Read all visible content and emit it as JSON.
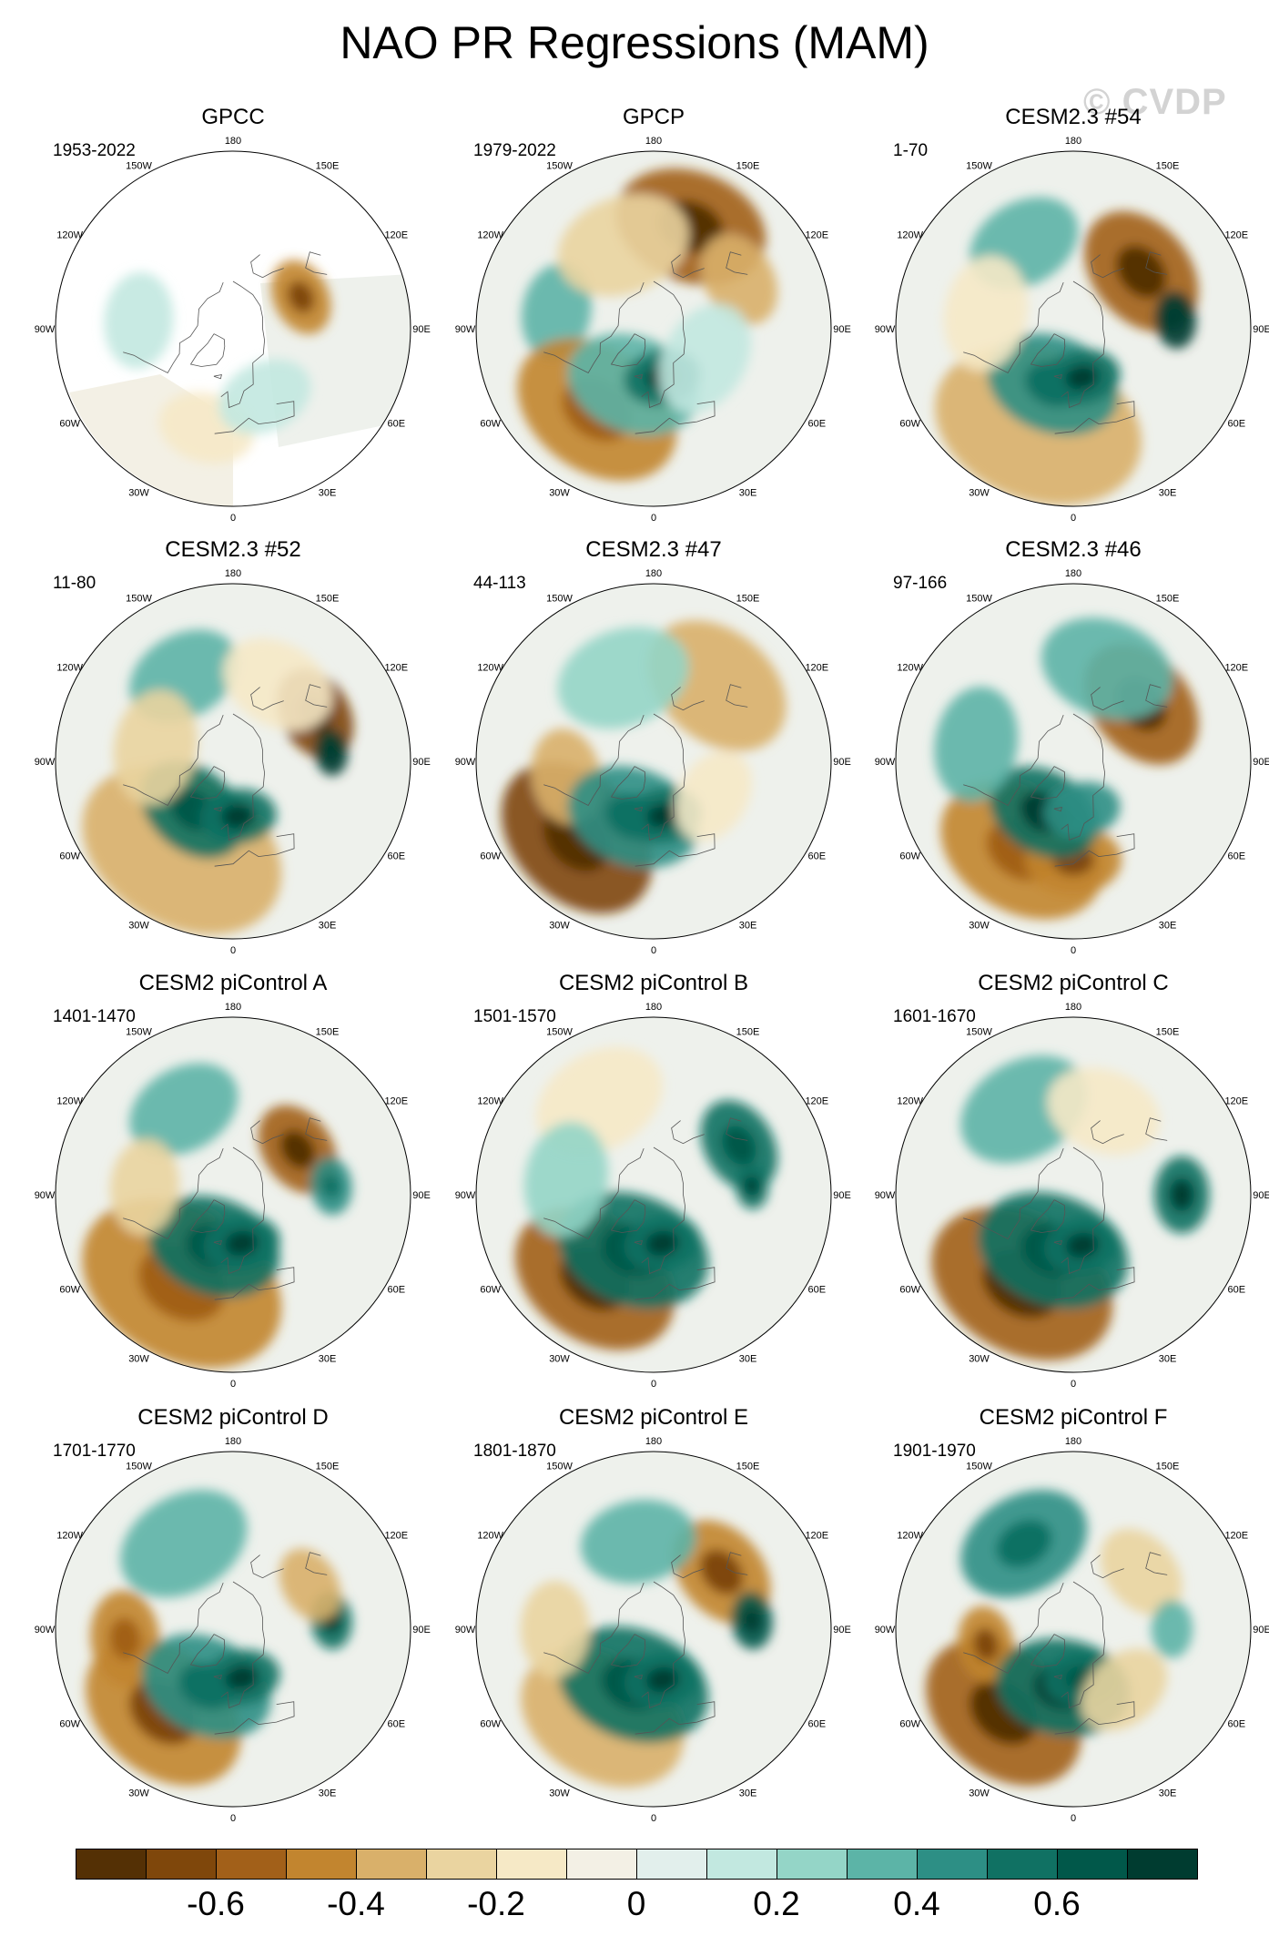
{
  "figure": {
    "title": "NAO PR Regressions (MAM)",
    "watermark": "© CVDP"
  },
  "map_labels": [
    "180",
    "150E",
    "120E",
    "90E",
    "60E",
    "30E",
    "0",
    "30W",
    "60W",
    "90W",
    "120W",
    "150W"
  ],
  "panels": [
    {
      "title": "GPCC",
      "period": "1953-2022",
      "masked": true,
      "blobs": [
        {
          "lon": 115,
          "lat": 52,
          "r": 20,
          "v": -0.5
        },
        {
          "lon": -95,
          "lat": 42,
          "r": 25,
          "v": 0.12
        },
        {
          "lon": -15,
          "lat": 38,
          "r": 25,
          "v": -0.15
        },
        {
          "lon": 25,
          "lat": 52,
          "r": 25,
          "v": 0.1
        }
      ]
    },
    {
      "title": "GPCP",
      "period": "1979-2022",
      "blobs": [
        {
          "lon": 160,
          "lat": 35,
          "r": 40,
          "v": -0.6
        },
        {
          "lon": -100,
          "lat": 40,
          "r": 25,
          "v": 0.35
        },
        {
          "lon": -35,
          "lat": 40,
          "r": 45,
          "v": -0.45
        },
        {
          "lon": -20,
          "lat": 60,
          "r": 35,
          "v": 0.3
        },
        {
          "lon": 10,
          "lat": 65,
          "r": 20,
          "v": 0.6
        },
        {
          "lon": 120,
          "lat": 40,
          "r": 25,
          "v": -0.35
        },
        {
          "lon": -160,
          "lat": 45,
          "r": 35,
          "v": -0.3
        },
        {
          "lon": 60,
          "lat": 60,
          "r": 30,
          "v": 0.1
        }
      ]
    },
    {
      "title": "CESM2.3 #54",
      "period": "1-70",
      "blobs": [
        {
          "lon": 130,
          "lat": 45,
          "r": 35,
          "v": -0.55
        },
        {
          "lon": -20,
          "lat": 38,
          "r": 55,
          "v": -0.35
        },
        {
          "lon": -20,
          "lat": 60,
          "r": 35,
          "v": 0.45
        },
        {
          "lon": 10,
          "lat": 65,
          "r": 20,
          "v": 0.6
        },
        {
          "lon": 95,
          "lat": 38,
          "r": 15,
          "v": 0.7
        },
        {
          "lon": -150,
          "lat": 40,
          "r": 30,
          "v": 0.35
        },
        {
          "lon": -100,
          "lat": 45,
          "r": 30,
          "v": -0.15
        }
      ]
    },
    {
      "title": "CESM2.3 #52",
      "period": "11-80",
      "blobs": [
        {
          "lon": 120,
          "lat": 42,
          "r": 25,
          "v": -0.7
        },
        {
          "lon": -30,
          "lat": 38,
          "r": 55,
          "v": -0.4
        },
        {
          "lon": -40,
          "lat": 58,
          "r": 30,
          "v": 0.5
        },
        {
          "lon": 5,
          "lat": 62,
          "r": 20,
          "v": 0.55
        },
        {
          "lon": -150,
          "lat": 40,
          "r": 30,
          "v": 0.3
        },
        {
          "lon": 95,
          "lat": 40,
          "r": 12,
          "v": 0.7
        },
        {
          "lon": -100,
          "lat": 50,
          "r": 30,
          "v": -0.25
        },
        {
          "lon": 150,
          "lat": 45,
          "r": 30,
          "v": -0.2
        }
      ]
    },
    {
      "title": "CESM2.3 #47",
      "period": "44-113",
      "blobs": [
        {
          "lon": -45,
          "lat": 35,
          "r": 45,
          "v": -0.65
        },
        {
          "lon": -80,
          "lat": 45,
          "r": 25,
          "v": -0.4
        },
        {
          "lon": -20,
          "lat": 60,
          "r": 35,
          "v": 0.45
        },
        {
          "lon": 10,
          "lat": 62,
          "r": 20,
          "v": 0.55
        },
        {
          "lon": 140,
          "lat": 40,
          "r": 40,
          "v": -0.4
        },
        {
          "lon": -160,
          "lat": 45,
          "r": 35,
          "v": 0.2
        },
        {
          "lon": 60,
          "lat": 55,
          "r": 25,
          "v": -0.15
        }
      ]
    },
    {
      "title": "CESM2.3 #46",
      "period": "97-166",
      "blobs": [
        {
          "lon": 130,
          "lat": 45,
          "r": 35,
          "v": -0.55
        },
        {
          "lon": -30,
          "lat": 38,
          "r": 45,
          "v": -0.45
        },
        {
          "lon": 0,
          "lat": 40,
          "r": 25,
          "v": -0.5
        },
        {
          "lon": -30,
          "lat": 60,
          "r": 30,
          "v": 0.55
        },
        {
          "lon": 10,
          "lat": 65,
          "r": 20,
          "v": 0.4
        },
        {
          "lon": 160,
          "lat": 40,
          "r": 35,
          "v": 0.35
        },
        {
          "lon": -100,
          "lat": 40,
          "r": 30,
          "v": 0.3
        }
      ]
    },
    {
      "title": "CESM2 piControl A",
      "period": "1401-1470",
      "blobs": [
        {
          "lon": 125,
          "lat": 50,
          "r": 25,
          "v": -0.6
        },
        {
          "lon": -30,
          "lat": 38,
          "r": 55,
          "v": -0.45
        },
        {
          "lon": -20,
          "lat": 62,
          "r": 35,
          "v": 0.5
        },
        {
          "lon": 10,
          "lat": 65,
          "r": 20,
          "v": 0.6
        },
        {
          "lon": 95,
          "lat": 40,
          "r": 15,
          "v": 0.45
        },
        {
          "lon": -150,
          "lat": 40,
          "r": 30,
          "v": 0.3
        },
        {
          "lon": -95,
          "lat": 45,
          "r": 25,
          "v": -0.3
        }
      ]
    },
    {
      "title": "CESM2 piControl B",
      "period": "1501-1570",
      "blobs": [
        {
          "lon": -35,
          "lat": 38,
          "r": 45,
          "v": -0.55
        },
        {
          "lon": -20,
          "lat": 60,
          "r": 40,
          "v": 0.5
        },
        {
          "lon": 10,
          "lat": 65,
          "r": 20,
          "v": 0.55
        },
        {
          "lon": 120,
          "lat": 40,
          "r": 25,
          "v": 0.5
        },
        {
          "lon": 95,
          "lat": 40,
          "r": 12,
          "v": 0.6
        },
        {
          "lon": -150,
          "lat": 35,
          "r": 35,
          "v": -0.2
        },
        {
          "lon": -100,
          "lat": 45,
          "r": 30,
          "v": 0.2
        }
      ]
    },
    {
      "title": "CESM2 piControl C",
      "period": "1601-1670",
      "blobs": [
        {
          "lon": -30,
          "lat": 38,
          "r": 50,
          "v": -0.55
        },
        {
          "lon": -20,
          "lat": 60,
          "r": 40,
          "v": 0.5
        },
        {
          "lon": 10,
          "lat": 64,
          "r": 20,
          "v": 0.55
        },
        {
          "lon": 90,
          "lat": 35,
          "r": 20,
          "v": 0.6
        },
        {
          "lon": -150,
          "lat": 40,
          "r": 35,
          "v": 0.3
        },
        {
          "lon": 160,
          "lat": 45,
          "r": 30,
          "v": -0.2
        }
      ]
    },
    {
      "title": "CESM2 piControl D",
      "period": "1701-1770",
      "blobs": [
        {
          "lon": -40,
          "lat": 35,
          "r": 45,
          "v": -0.5
        },
        {
          "lon": -85,
          "lat": 35,
          "r": 25,
          "v": -0.45
        },
        {
          "lon": -25,
          "lat": 58,
          "r": 35,
          "v": 0.45
        },
        {
          "lon": 10,
          "lat": 65,
          "r": 20,
          "v": 0.55
        },
        {
          "lon": 95,
          "lat": 40,
          "r": 15,
          "v": 0.6
        },
        {
          "lon": 120,
          "lat": 45,
          "r": 20,
          "v": -0.4
        },
        {
          "lon": -150,
          "lat": 40,
          "r": 35,
          "v": 0.35
        }
      ]
    },
    {
      "title": "CESM2 piControl E",
      "period": "1801-1870",
      "blobs": [
        {
          "lon": -30,
          "lat": 38,
          "r": 45,
          "v": -0.4
        },
        {
          "lon": -20,
          "lat": 60,
          "r": 40,
          "v": 0.5
        },
        {
          "lon": 10,
          "lat": 64,
          "r": 20,
          "v": 0.55
        },
        {
          "lon": 130,
          "lat": 45,
          "r": 30,
          "v": -0.5
        },
        {
          "lon": 95,
          "lat": 40,
          "r": 15,
          "v": 0.65
        },
        {
          "lon": -170,
          "lat": 45,
          "r": 30,
          "v": 0.35
        },
        {
          "lon": -90,
          "lat": 40,
          "r": 25,
          "v": -0.25
        }
      ]
    },
    {
      "title": "CESM2 piControl F",
      "period": "1901-1970",
      "blobs": [
        {
          "lon": -40,
          "lat": 35,
          "r": 45,
          "v": -0.6
        },
        {
          "lon": -80,
          "lat": 45,
          "r": 20,
          "v": -0.5
        },
        {
          "lon": -10,
          "lat": 60,
          "r": 35,
          "v": 0.55
        },
        {
          "lon": 10,
          "lat": 65,
          "r": 20,
          "v": 0.5
        },
        {
          "lon": -150,
          "lat": 40,
          "r": 35,
          "v": 0.45
        },
        {
          "lon": 130,
          "lat": 45,
          "r": 25,
          "v": -0.3
        },
        {
          "lon": 90,
          "lat": 40,
          "r": 15,
          "v": 0.35
        },
        {
          "lon": 40,
          "lat": 50,
          "r": 25,
          "v": -0.3
        }
      ]
    }
  ],
  "colorbar": {
    "colors": [
      "#543005",
      "#7f470b",
      "#a26019",
      "#c2852f",
      "#d9b06a",
      "#ead4a0",
      "#f6e9c6",
      "#f3f0e5",
      "#e2efec",
      "#c2e8e0",
      "#94d5c7",
      "#5cb4a7",
      "#2d8f85",
      "#107163",
      "#01584a",
      "#003c30"
    ],
    "tick_labels": [
      "-0.6",
      "-0.4",
      "-0.2",
      "0",
      "0.2",
      "0.4",
      "0.6"
    ]
  }
}
